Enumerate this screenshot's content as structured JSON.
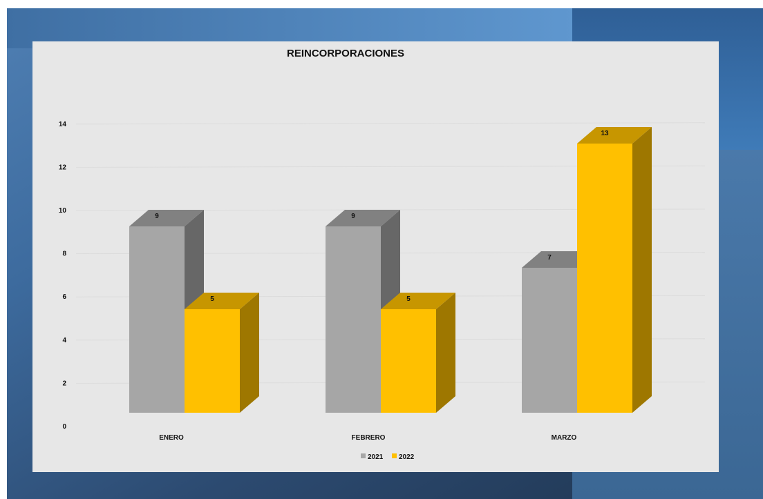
{
  "chart_data": {
    "type": "bar",
    "style": "3d-column",
    "title": "REINCORPORACIONES",
    "xlabel": "",
    "ylabel": "",
    "categories": [
      "ENERO",
      "FEBRERO",
      "MARZO"
    ],
    "series": [
      {
        "name": "2021",
        "values": [
          9,
          9,
          7
        ],
        "color": "#a6a6a6"
      },
      {
        "name": "2022",
        "values": [
          5,
          5,
          13
        ],
        "color": "#ffc000"
      }
    ],
    "ylim": [
      0,
      14
    ],
    "yticks": [
      "0",
      "2",
      "4",
      "6",
      "8",
      "10",
      "12",
      "14"
    ],
    "grid": true,
    "legend_position": "bottom"
  }
}
